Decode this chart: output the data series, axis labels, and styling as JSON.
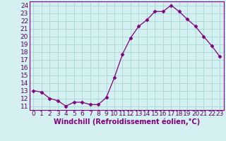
{
  "x": [
    0,
    1,
    2,
    3,
    4,
    5,
    6,
    7,
    8,
    9,
    10,
    11,
    12,
    13,
    14,
    15,
    16,
    17,
    18,
    19,
    20,
    21,
    22,
    23
  ],
  "y": [
    13.0,
    12.8,
    12.0,
    11.7,
    11.0,
    11.5,
    11.5,
    11.2,
    11.2,
    12.1,
    14.7,
    17.7,
    19.8,
    21.3,
    22.1,
    23.2,
    23.2,
    24.0,
    23.2,
    22.2,
    21.3,
    20.0,
    18.8,
    17.4
  ],
  "line_color": "#800080",
  "marker": "D",
  "marker_size": 2.5,
  "bg_color": "#d4f0f0",
  "grid_color": "#aed8d8",
  "xlabel": "Windchill (Refroidissement éolien,°C)",
  "xlabel_fontsize": 7,
  "tick_fontsize": 6.5,
  "xlim": [
    -0.5,
    23.5
  ],
  "ylim": [
    10.5,
    24.5
  ],
  "yticks": [
    11,
    12,
    13,
    14,
    15,
    16,
    17,
    18,
    19,
    20,
    21,
    22,
    23,
    24
  ],
  "xticks": [
    0,
    1,
    2,
    3,
    4,
    5,
    6,
    7,
    8,
    9,
    10,
    11,
    12,
    13,
    14,
    15,
    16,
    17,
    18,
    19,
    20,
    21,
    22,
    23
  ]
}
